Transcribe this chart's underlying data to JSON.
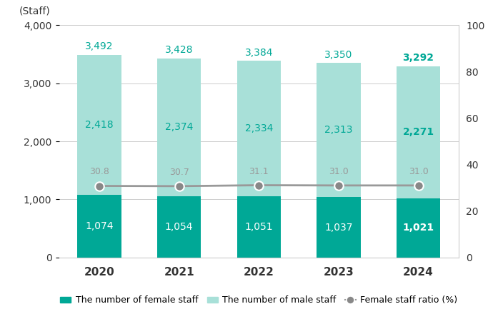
{
  "years": [
    "2020",
    "2021",
    "2022",
    "2023",
    "2024"
  ],
  "female_staff": [
    1074,
    1054,
    1051,
    1037,
    1021
  ],
  "male_staff": [
    2418,
    2374,
    2334,
    2313,
    2271
  ],
  "total_staff": [
    3492,
    3428,
    3384,
    3350,
    3292
  ],
  "female_ratio": [
    30.8,
    30.7,
    31.1,
    31.0,
    31.0
  ],
  "female_color": "#00A896",
  "male_color": "#A8E0D8",
  "ratio_color": "#999999",
  "ratio_marker_color": "#888888",
  "ylim_left": [
    0,
    4000
  ],
  "ylim_right": [
    0,
    100
  ],
  "ylabel_left": "(Staff)",
  "yticks_left": [
    0,
    1000,
    2000,
    3000,
    4000
  ],
  "yticks_right": [
    0,
    20,
    40,
    60,
    80,
    100
  ],
  "legend_female": "The number of female staff",
  "legend_male": "The number of male staff",
  "legend_ratio": "Female staff ratio (%)",
  "bar_width": 0.55,
  "background_color": "#ffffff"
}
